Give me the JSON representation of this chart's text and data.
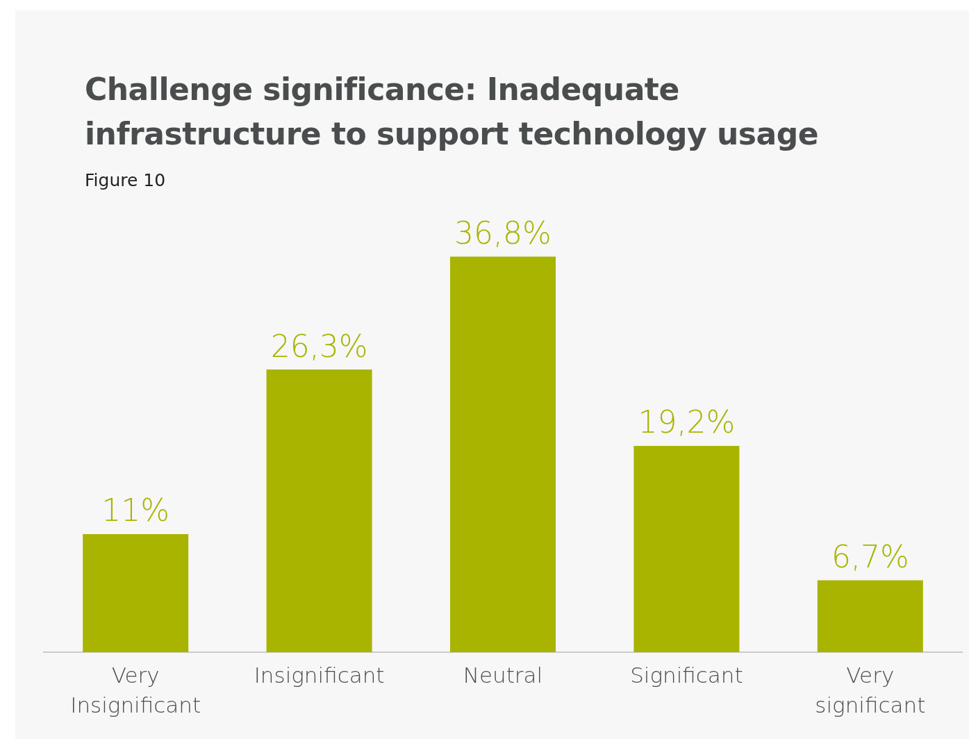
{
  "chart_data": {
    "type": "bar",
    "title": "Challenge significance: Inadequate infrastructure to support technology usage",
    "subtitle": "Figure 10",
    "categories": [
      "Very Insignificant",
      "Insignificant",
      "Neutral",
      "Significant",
      "Very significant"
    ],
    "values": [
      11,
      26.3,
      36.8,
      19.2,
      6.7
    ],
    "color": "#a8b400",
    "value_labels": [
      "11%",
      "26,3%",
      "36,8%",
      "19,2%",
      "6,7%"
    ],
    "grid": false,
    "legend": false
  }
}
